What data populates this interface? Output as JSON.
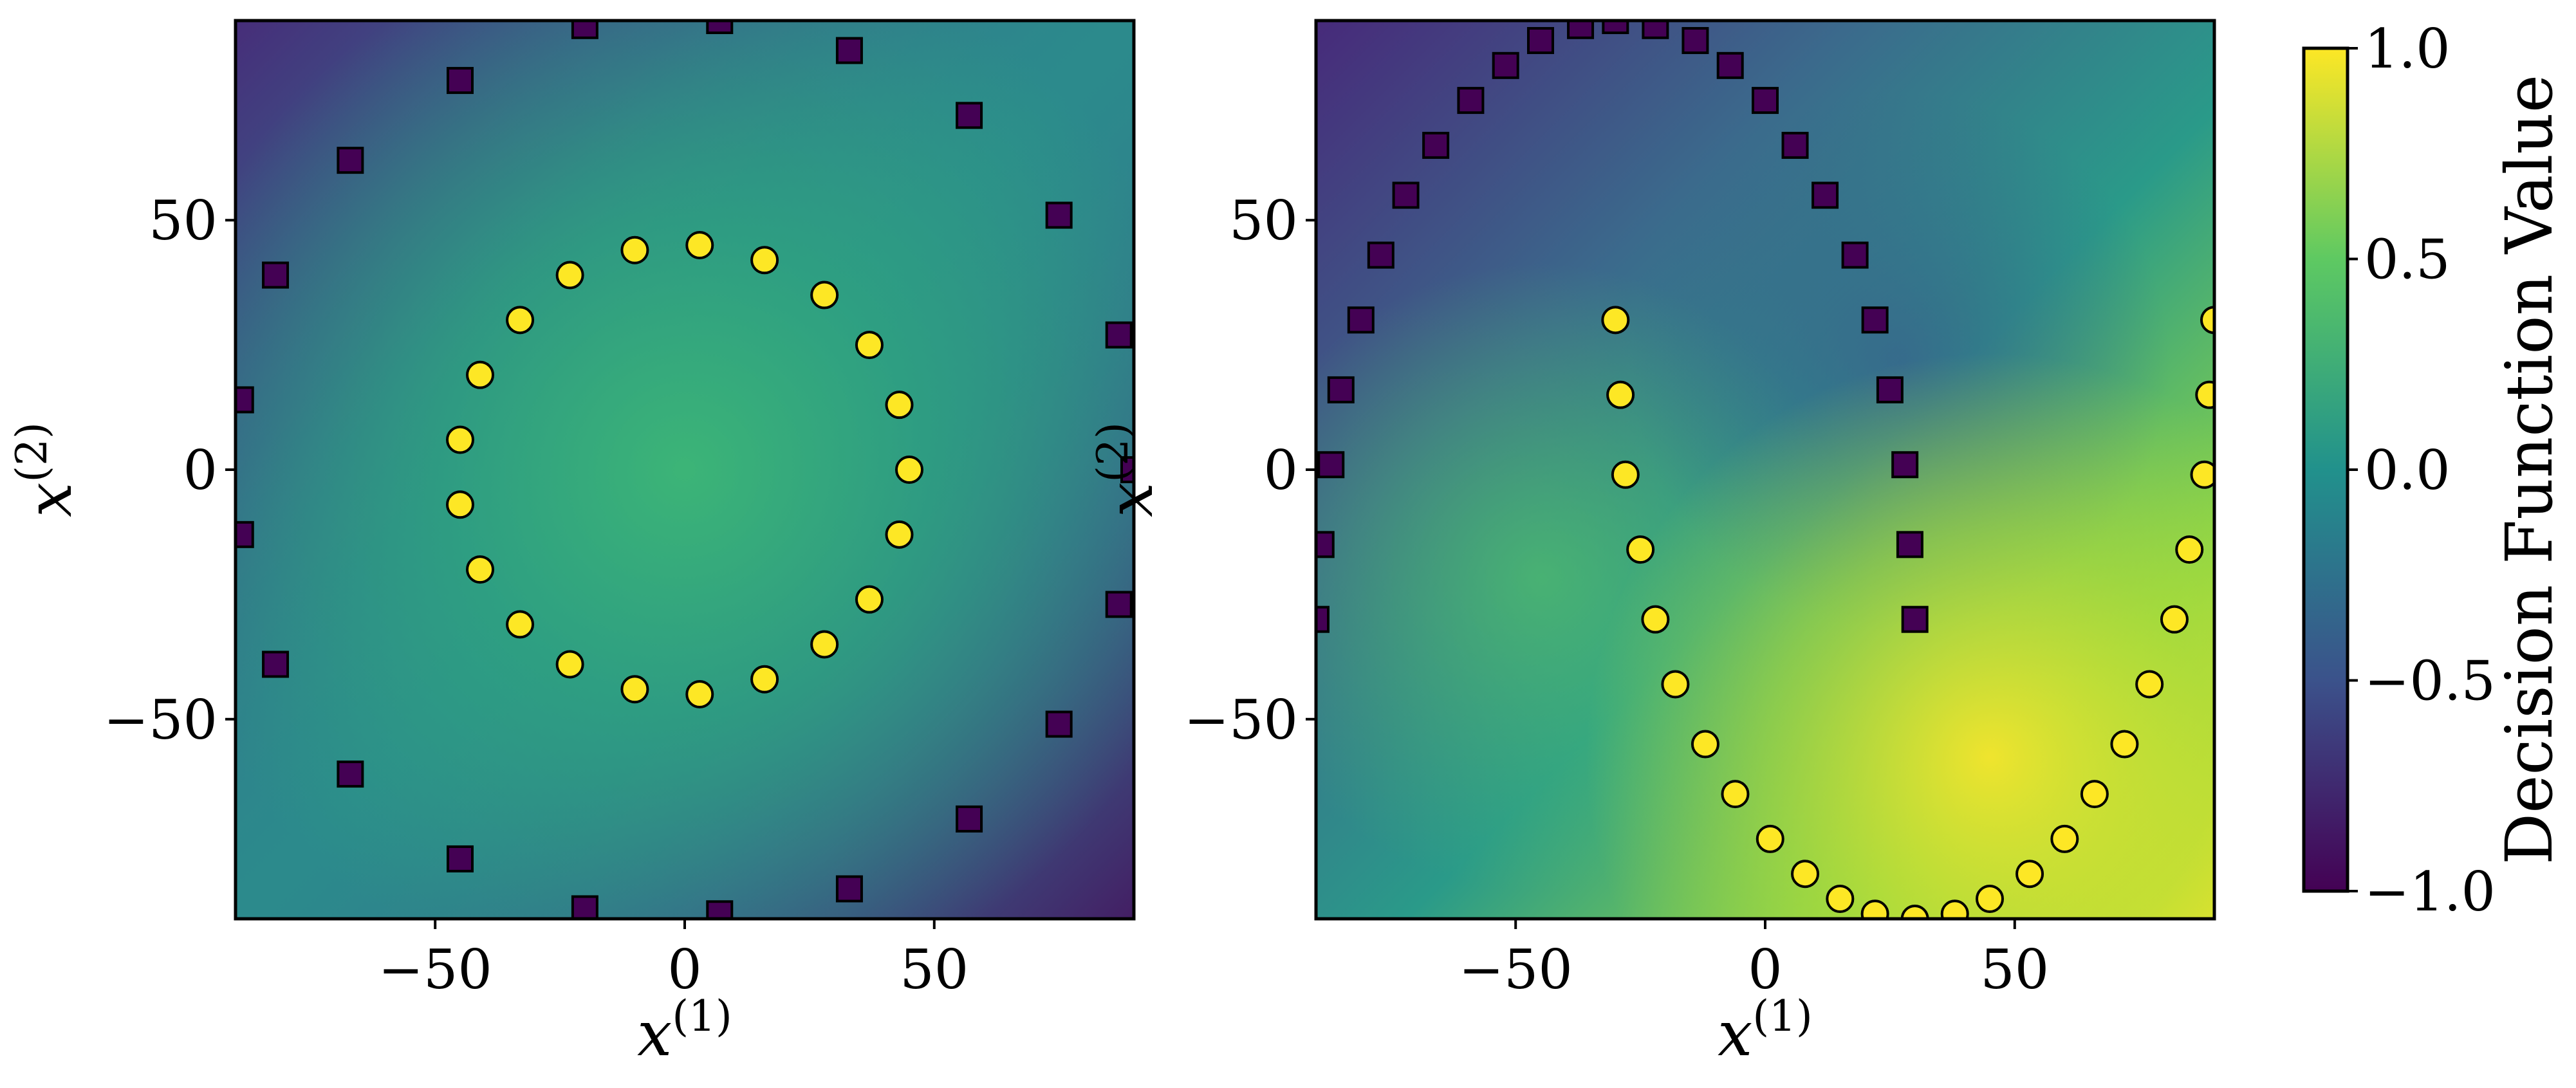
{
  "chart_data": [
    {
      "type": "heatmap",
      "title": "",
      "xlabel": "x",
      "xlabel_sup": "(1)",
      "ylabel": "x",
      "ylabel_sup": "(2)",
      "xlim": [
        -90,
        90
      ],
      "ylim": [
        -90,
        90
      ],
      "xticks": [
        -50,
        0,
        50
      ],
      "yticks": [
        -50,
        0,
        50
      ],
      "xtick_labels": [
        "−50",
        "0",
        "50"
      ],
      "ytick_labels": [
        "−50",
        "0",
        "50"
      ],
      "grid": false,
      "background": "decision function surface: higher inside the circle, lower near the corners",
      "series": [
        {
          "marker": "square",
          "color": "#440154",
          "points": [
            [
              -89,
              14
            ],
            [
              -89,
              -13
            ],
            [
              -82,
              39
            ],
            [
              -82,
              -39
            ],
            [
              -67,
              62
            ],
            [
              -67,
              -61
            ],
            [
              -45,
              78
            ],
            [
              -45,
              -78
            ],
            [
              -20,
              89
            ],
            [
              -20,
              -88
            ],
            [
              7,
              90
            ],
            [
              7,
              -89
            ],
            [
              33,
              84
            ],
            [
              33,
              -84
            ],
            [
              57,
              71
            ],
            [
              57,
              -70
            ],
            [
              75,
              51
            ],
            [
              75,
              -51
            ],
            [
              87,
              27
            ],
            [
              87,
              -27
            ],
            [
              90,
              0
            ]
          ]
        },
        {
          "marker": "circle",
          "color": "#fde725",
          "points": [
            [
              45,
              0
            ],
            [
              43,
              13
            ],
            [
              37,
              25
            ],
            [
              28,
              35
            ],
            [
              16,
              42
            ],
            [
              3,
              45
            ],
            [
              -10,
              44
            ],
            [
              -23,
              39
            ],
            [
              -33,
              30
            ],
            [
              -41,
              19
            ],
            [
              -45,
              6
            ],
            [
              -45,
              -7
            ],
            [
              -41,
              -20
            ],
            [
              -33,
              -31
            ],
            [
              -23,
              -39
            ],
            [
              -10,
              -44
            ],
            [
              3,
              -45
            ],
            [
              16,
              -42
            ],
            [
              28,
              -35
            ],
            [
              37,
              -26
            ],
            [
              43,
              -13
            ]
          ]
        }
      ]
    },
    {
      "type": "heatmap",
      "title": "",
      "xlabel": "x",
      "xlabel_sup": "(1)",
      "ylabel": "x",
      "ylabel_sup": "(2)",
      "xlim": [
        -90,
        90
      ],
      "ylim": [
        -90,
        90
      ],
      "xticks": [
        -50,
        0,
        50
      ],
      "yticks": [
        -50,
        0,
        50
      ],
      "xtick_labels": [
        "−50",
        "0",
        "50"
      ],
      "ytick_labels": [
        "−50",
        "0",
        "50"
      ],
      "grid": false,
      "background": "decision function surface: low in the top-left, high in the bottom-right",
      "series": [
        {
          "marker": "square",
          "color": "#440154",
          "points": [
            [
              -90,
              -30
            ],
            [
              -89,
              -15
            ],
            [
              -87,
              1
            ],
            [
              -85,
              16
            ],
            [
              -81,
              30
            ],
            [
              -77,
              43
            ],
            [
              -72,
              55
            ],
            [
              -66,
              65
            ],
            [
              -59,
              74
            ],
            [
              -52,
              81
            ],
            [
              -45,
              86
            ],
            [
              -37,
              89
            ],
            [
              -30,
              90
            ],
            [
              -22,
              89
            ],
            [
              -14,
              86
            ],
            [
              -7,
              81
            ],
            [
              0,
              74
            ],
            [
              6,
              65
            ],
            [
              12,
              55
            ],
            [
              18,
              43
            ],
            [
              22,
              30
            ],
            [
              25,
              16
            ],
            [
              28,
              1
            ],
            [
              29,
              -15
            ],
            [
              30,
              -30
            ]
          ]
        },
        {
          "marker": "circle",
          "color": "#fde725",
          "points": [
            [
              -30,
              30
            ],
            [
              -29,
              15
            ],
            [
              -28,
              -1
            ],
            [
              -25,
              -16
            ],
            [
              -22,
              -30
            ],
            [
              -18,
              -43
            ],
            [
              -12,
              -55
            ],
            [
              -6,
              -65
            ],
            [
              1,
              -74
            ],
            [
              8,
              -81
            ],
            [
              15,
              -86
            ],
            [
              22,
              -89
            ],
            [
              30,
              -90
            ],
            [
              38,
              -89
            ],
            [
              45,
              -86
            ],
            [
              53,
              -81
            ],
            [
              60,
              -74
            ],
            [
              66,
              -65
            ],
            [
              72,
              -55
            ],
            [
              77,
              -43
            ],
            [
              82,
              -30
            ],
            [
              85,
              -16
            ],
            [
              88,
              -1
            ],
            [
              89,
              15
            ],
            [
              90,
              30
            ]
          ]
        }
      ]
    },
    {
      "type": "colorbar",
      "label": "Decision Function Value",
      "range": [
        -1.0,
        1.0
      ],
      "ticks": [
        -1.0,
        -0.5,
        0.0,
        0.5,
        1.0
      ],
      "tick_labels": [
        "−1.0",
        "−0.5",
        "0.0",
        "0.5",
        "1.0"
      ],
      "colormap": "viridis",
      "colors": [
        "#440154",
        "#3b528b",
        "#21918c",
        "#5ec962",
        "#fde725"
      ]
    }
  ]
}
